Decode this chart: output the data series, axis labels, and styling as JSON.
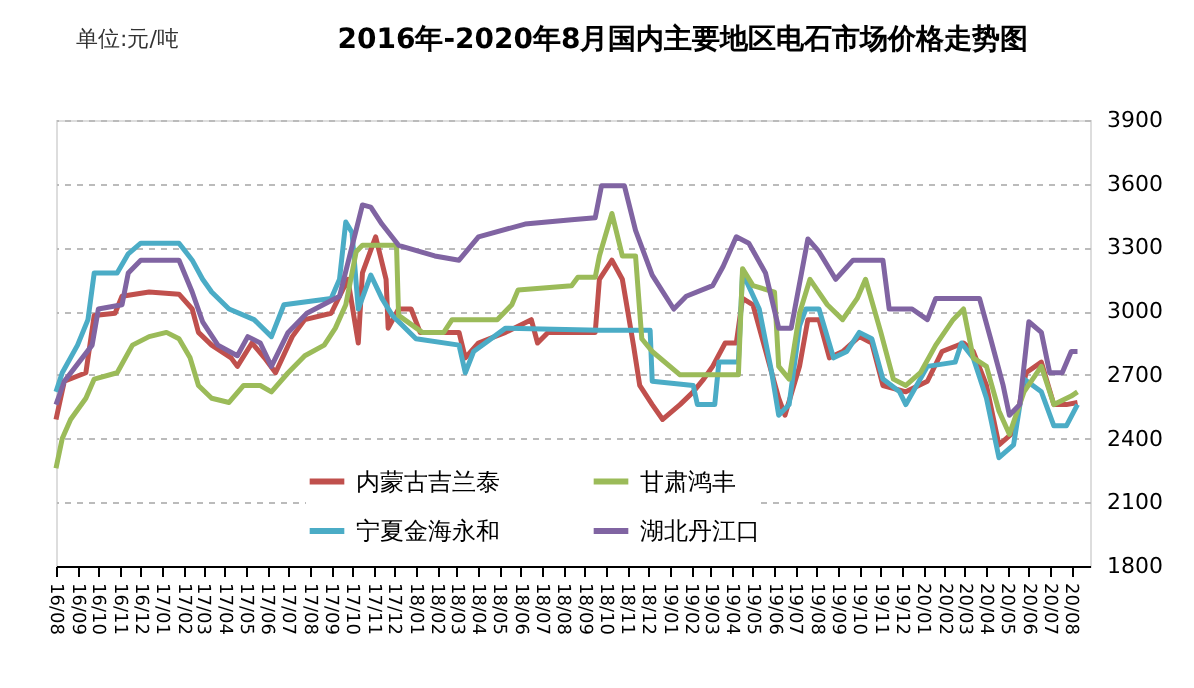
{
  "chart_data": {
    "type": "line",
    "title": "2016年-2020年8月国内主要地区电石市场价格走势图",
    "annotations": [
      "单位:元/吨"
    ],
    "xlim": [
      "2016-08-01",
      "2020-08-28"
    ],
    "ylim": [
      1800,
      3900
    ],
    "yticks": [
      1800,
      2100,
      2400,
      2700,
      3000,
      3300,
      3600,
      3900
    ],
    "xticks": [
      {
        "value": "2016-08",
        "label": "16/08"
      },
      {
        "value": "2016-09",
        "label": "16/09"
      },
      {
        "value": "2016-10",
        "label": "16/10"
      },
      {
        "value": "2016-11",
        "label": "16/11"
      },
      {
        "value": "2016-12",
        "label": "16/12"
      },
      {
        "value": "2017-01",
        "label": "17/01"
      },
      {
        "value": "2017-02",
        "label": "17/02"
      },
      {
        "value": "2017-03",
        "label": "17/03"
      },
      {
        "value": "2017-04",
        "label": "17/04"
      },
      {
        "value": "2017-05",
        "label": "17/05"
      },
      {
        "value": "2017-06",
        "label": "17/06"
      },
      {
        "value": "2017-07",
        "label": "17/07"
      },
      {
        "value": "2017-08",
        "label": "17/08"
      },
      {
        "value": "2017-09",
        "label": "17/09"
      },
      {
        "value": "2017-10",
        "label": "17/10"
      },
      {
        "value": "2017-11",
        "label": "17/11"
      },
      {
        "value": "2017-12",
        "label": "17/12"
      },
      {
        "value": "2018-01",
        "label": "18/01"
      },
      {
        "value": "2018-02",
        "label": "18/02"
      },
      {
        "value": "2018-03",
        "label": "18/03"
      },
      {
        "value": "2018-04",
        "label": "18/04"
      },
      {
        "value": "2018-05",
        "label": "18/05"
      },
      {
        "value": "2018-06",
        "label": "18/06"
      },
      {
        "value": "2018-07",
        "label": "18/07"
      },
      {
        "value": "2018-08",
        "label": "18/08"
      },
      {
        "value": "2018-09",
        "label": "18/09"
      },
      {
        "value": "2018-10",
        "label": "18/10"
      },
      {
        "value": "2018-11",
        "label": "18/11"
      },
      {
        "value": "2018-12",
        "label": "18/12"
      },
      {
        "value": "2019-01",
        "label": "19/01"
      },
      {
        "value": "2019-02",
        "label": "19/02"
      },
      {
        "value": "2019-03",
        "label": "19/03"
      },
      {
        "value": "2019-04",
        "label": "19/04"
      },
      {
        "value": "2019-05",
        "label": "19/05"
      },
      {
        "value": "2019-06",
        "label": "19/06"
      },
      {
        "value": "2019-07",
        "label": "19/07"
      },
      {
        "value": "2019-08",
        "label": "19/08"
      },
      {
        "value": "2019-09",
        "label": "19/09"
      },
      {
        "value": "2019-10",
        "label": "19/10"
      },
      {
        "value": "2019-11",
        "label": "19/11"
      },
      {
        "value": "2019-12",
        "label": "19/12"
      },
      {
        "value": "2020-01",
        "label": "20/01"
      },
      {
        "value": "2020-02",
        "label": "20/02"
      },
      {
        "value": "2020-03",
        "label": "20/03"
      },
      {
        "value": "2020-04",
        "label": "20/04"
      },
      {
        "value": "2020-05",
        "label": "20/05"
      },
      {
        "value": "2020-06",
        "label": "20/06"
      },
      {
        "value": "2020-07",
        "label": "20/07"
      },
      {
        "value": "2020-08",
        "label": "20/08"
      }
    ],
    "grid": "y",
    "legend": "bottom",
    "series": [
      {
        "name": "内蒙古吉兰泰",
        "color": "#c0504d",
        "x": [
          "2016-08-01",
          "2016-08-13",
          "2016-09-13",
          "2016-09-25",
          "2016-10-25",
          "2016-11-04",
          "2016-12-13",
          "2017-01-25",
          "2017-02-13",
          "2017-02-22",
          "2017-03-13",
          "2017-04-10",
          "2017-04-19",
          "2017-05-10",
          "2017-05-28",
          "2017-06-13",
          "2017-07-07",
          "2017-07-25",
          "2017-09-01",
          "2017-09-25",
          "2017-10-10",
          "2017-10-16",
          "2017-11-04",
          "2017-11-19",
          "2017-11-22",
          "2017-12-07",
          "2017-12-25",
          "2018-01-07",
          "2018-03-04",
          "2018-03-13",
          "2018-04-01",
          "2018-05-10",
          "2018-06-16",
          "2018-06-25",
          "2018-07-10",
          "2018-09-16",
          "2018-09-22",
          "2018-10-10",
          "2018-10-25",
          "2018-11-10",
          "2018-11-19",
          "2018-12-07",
          "2018-12-22",
          "2019-01-16",
          "2019-02-04",
          "2019-02-19",
          "2019-03-04",
          "2019-03-22",
          "2019-04-07",
          "2019-04-16",
          "2019-05-01",
          "2019-05-22",
          "2019-06-07",
          "2019-06-16",
          "2019-07-07",
          "2019-07-19",
          "2019-08-04",
          "2019-08-19",
          "2019-09-07",
          "2019-10-01",
          "2019-10-19",
          "2019-11-04",
          "2019-12-07",
          "2020-01-07",
          "2020-01-28",
          "2020-02-28",
          "2020-03-13",
          "2020-04-01",
          "2020-04-19",
          "2020-05-10",
          "2020-05-28",
          "2020-06-19",
          "2020-07-07",
          "2020-07-25",
          "2020-08-10"
        ],
        "values": [
          2490,
          2670,
          2710,
          2980,
          2990,
          3070,
          3090,
          3080,
          3010,
          2900,
          2840,
          2780,
          2740,
          2850,
          2780,
          2710,
          2880,
          2960,
          2990,
          3150,
          2850,
          3180,
          3350,
          3150,
          2920,
          3010,
          3010,
          2900,
          2900,
          2780,
          2850,
          2900,
          2960,
          2850,
          2900,
          2900,
          3150,
          3240,
          3150,
          2840,
          2650,
          2560,
          2490,
          2560,
          2620,
          2680,
          2740,
          2850,
          2850,
          3060,
          3030,
          2780,
          2590,
          2510,
          2740,
          2960,
          2960,
          2780,
          2810,
          2880,
          2850,
          2650,
          2620,
          2670,
          2810,
          2850,
          2810,
          2650,
          2370,
          2430,
          2710,
          2760,
          2560,
          2560,
          2570
        ]
      },
      {
        "name": "宁夏金海永和",
        "color": "#4bacc6",
        "x": [
          "2016-08-01",
          "2016-08-10",
          "2016-09-01",
          "2016-09-16",
          "2016-09-25",
          "2016-10-28",
          "2016-11-13",
          "2016-12-01",
          "2017-01-25",
          "2017-02-13",
          "2017-02-28",
          "2017-03-13",
          "2017-04-07",
          "2017-05-13",
          "2017-06-07",
          "2017-06-25",
          "2017-09-01",
          "2017-09-13",
          "2017-09-22",
          "2017-10-01",
          "2017-10-10",
          "2017-10-28",
          "2017-11-13",
          "2017-11-28",
          "2018-01-01",
          "2018-03-04",
          "2018-03-13",
          "2018-03-25",
          "2018-05-10",
          "2018-09-22",
          "2018-12-04",
          "2018-12-07",
          "2019-02-04",
          "2019-02-10",
          "2019-03-07",
          "2019-03-13",
          "2019-04-10",
          "2019-04-16",
          "2019-05-10",
          "2019-05-28",
          "2019-06-07",
          "2019-06-22",
          "2019-07-07",
          "2019-07-16",
          "2019-08-04",
          "2019-08-25",
          "2019-09-13",
          "2019-10-01",
          "2019-10-19",
          "2019-11-04",
          "2019-11-28",
          "2019-12-07",
          "2020-01-07",
          "2020-02-16",
          "2020-02-25",
          "2020-03-13",
          "2020-04-01",
          "2020-04-19",
          "2020-05-10",
          "2020-05-25",
          "2020-06-19",
          "2020-07-07",
          "2020-07-25",
          "2020-08-10"
        ],
        "values": [
          2620,
          2710,
          2840,
          2960,
          3180,
          3180,
          3270,
          3320,
          3320,
          3240,
          3150,
          3090,
          3010,
          2960,
          2880,
          3030,
          3060,
          3150,
          3420,
          3370,
          3010,
          3170,
          3060,
          2980,
          2870,
          2840,
          2710,
          2810,
          2920,
          2910,
          2910,
          2670,
          2650,
          2560,
          2560,
          2760,
          2760,
          3180,
          3010,
          2710,
          2510,
          2560,
          2930,
          3010,
          3010,
          2780,
          2810,
          2900,
          2870,
          2680,
          2620,
          2560,
          2740,
          2760,
          2850,
          2780,
          2590,
          2310,
          2370,
          2680,
          2620,
          2460,
          2460,
          2560
        ]
      },
      {
        "name": "甘肃鸿丰",
        "color": "#9bbb59",
        "x": [
          "2016-08-01",
          "2016-08-10",
          "2016-08-22",
          "2016-09-13",
          "2016-09-25",
          "2016-10-28",
          "2016-11-19",
          "2016-12-13",
          "2017-01-07",
          "2017-01-25",
          "2017-02-10",
          "2017-02-22",
          "2017-03-13",
          "2017-04-07",
          "2017-04-28",
          "2017-05-22",
          "2017-06-07",
          "2017-07-01",
          "2017-07-25",
          "2017-08-22",
          "2017-09-07",
          "2017-09-22",
          "2017-10-07",
          "2017-10-16",
          "2017-12-04",
          "2017-12-07",
          "2018-01-10",
          "2018-02-10",
          "2018-02-22",
          "2018-04-28",
          "2018-05-19",
          "2018-05-28",
          "2018-08-13",
          "2018-08-22",
          "2018-09-16",
          "2018-09-22",
          "2018-10-10",
          "2018-10-25",
          "2018-11-13",
          "2018-11-22",
          "2018-12-07",
          "2019-01-16",
          "2019-04-10",
          "2019-04-16",
          "2019-05-01",
          "2019-06-01",
          "2019-06-07",
          "2019-06-22",
          "2019-07-07",
          "2019-07-22",
          "2019-08-16",
          "2019-09-07",
          "2019-09-28",
          "2019-10-10",
          "2019-11-01",
          "2019-11-19",
          "2019-12-07",
          "2019-12-28",
          "2020-01-19",
          "2020-02-13",
          "2020-02-28",
          "2020-03-13",
          "2020-04-01",
          "2020-04-19",
          "2020-05-04",
          "2020-05-25",
          "2020-06-19",
          "2020-07-07",
          "2020-08-01",
          "2020-08-10"
        ],
        "values": [
          2260,
          2400,
          2490,
          2590,
          2680,
          2710,
          2840,
          2880,
          2900,
          2870,
          2780,
          2650,
          2590,
          2570,
          2650,
          2650,
          2620,
          2710,
          2790,
          2840,
          2920,
          3030,
          3280,
          3310,
          3310,
          2980,
          2900,
          2900,
          2960,
          2960,
          3030,
          3100,
          3120,
          3160,
          3160,
          3260,
          3460,
          3260,
          3260,
          2870,
          2810,
          2700,
          2700,
          3200,
          3120,
          3090,
          2740,
          2680,
          2990,
          3150,
          3030,
          2960,
          3060,
          3150,
          2900,
          2680,
          2650,
          2710,
          2840,
          2960,
          3010,
          2780,
          2740,
          2530,
          2420,
          2620,
          2740,
          2560,
          2600,
          2620
        ]
      },
      {
        "name": "湖北丹江口",
        "color": "#8064a2",
        "x": [
          "2016-08-01",
          "2016-08-13",
          "2016-09-22",
          "2016-10-01",
          "2016-11-04",
          "2016-11-13",
          "2016-12-01",
          "2017-01-25",
          "2017-02-13",
          "2017-02-28",
          "2017-03-22",
          "2017-04-19",
          "2017-05-04",
          "2017-05-22",
          "2017-06-07",
          "2017-07-01",
          "2017-07-28",
          "2017-09-13",
          "2017-10-16",
          "2017-10-28",
          "2017-11-13",
          "2017-12-07",
          "2018-01-28",
          "2018-03-04",
          "2018-04-01",
          "2018-06-07",
          "2018-08-13",
          "2018-09-16",
          "2018-09-25",
          "2018-10-28",
          "2018-11-13",
          "2018-12-07",
          "2019-01-07",
          "2019-01-25",
          "2019-03-04",
          "2019-03-19",
          "2019-04-07",
          "2019-04-25",
          "2019-05-19",
          "2019-06-07",
          "2019-06-25",
          "2019-07-19",
          "2019-08-04",
          "2019-08-28",
          "2019-09-22",
          "2019-11-04",
          "2019-11-13",
          "2019-12-16",
          "2020-01-07",
          "2020-01-19",
          "2020-03-22",
          "2020-04-07",
          "2020-04-25",
          "2020-05-04",
          "2020-05-19",
          "2020-06-01",
          "2020-06-19",
          "2020-07-01",
          "2020-07-19",
          "2020-08-01",
          "2020-08-10"
        ],
        "values": [
          2560,
          2670,
          2840,
          3010,
          3030,
          3180,
          3240,
          3240,
          3090,
          2950,
          2840,
          2790,
          2880,
          2850,
          2740,
          2900,
          2990,
          3070,
          3500,
          3490,
          3410,
          3310,
          3260,
          3240,
          3350,
          3410,
          3430,
          3440,
          3590,
          3590,
          3380,
          3170,
          3010,
          3070,
          3120,
          3210,
          3350,
          3320,
          3180,
          2920,
          2920,
          3340,
          3280,
          3150,
          3240,
          3240,
          3010,
          3010,
          2960,
          3060,
          3060,
          2870,
          2650,
          2510,
          2560,
          2950,
          2900,
          2710,
          2710,
          2810,
          2810
        ]
      }
    ]
  }
}
